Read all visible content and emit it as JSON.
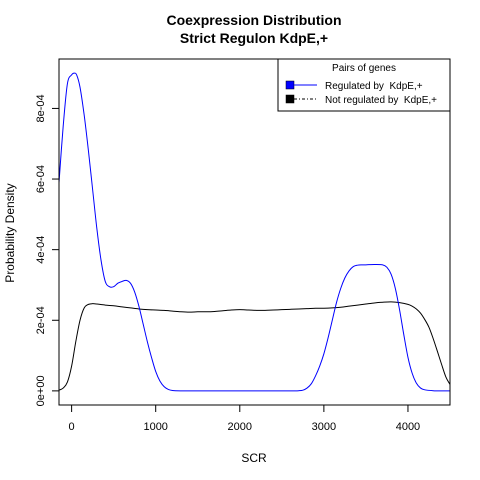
{
  "chart_data": {
    "type": "line",
    "title": "Coexpression Distribution",
    "subtitle": "Strict Regulon KdpE,+",
    "xlabel": "SCR",
    "ylabel": "Probability Density",
    "xlim": [
      -150,
      4500
    ],
    "ylim": [
      -4e-05,
      0.00094
    ],
    "x_ticks": [
      0,
      1000,
      2000,
      3000,
      4000
    ],
    "x_tick_labels": [
      "0",
      "1000",
      "2000",
      "3000",
      "4000"
    ],
    "y_ticks": [
      0,
      0.0002,
      0.0004,
      0.0006,
      0.0008
    ],
    "y_tick_labels": [
      "0e+00",
      "2e-04",
      "4e-04",
      "6e-04",
      "8e-04"
    ],
    "grid": false,
    "legend": {
      "title": "Pairs of genes",
      "placement": "top-right"
    },
    "series": [
      {
        "name": "Regulated by  KdpE,+",
        "color": "#0000ff",
        "line_style": "solid",
        "x": [
          -150,
          -100,
          -50,
          0,
          30,
          60,
          100,
          150,
          200,
          250,
          300,
          350,
          400,
          450,
          500,
          550,
          600,
          650,
          700,
          750,
          800,
          850,
          900,
          950,
          1000,
          1050,
          1100,
          1150,
          1200,
          1300,
          1400,
          1600,
          1800,
          2000,
          2200,
          2400,
          2600,
          2700,
          2750,
          2800,
          2850,
          2900,
          2950,
          3000,
          3050,
          3100,
          3150,
          3200,
          3250,
          3300,
          3350,
          3400,
          3450,
          3500,
          3600,
          3700,
          3750,
          3800,
          3850,
          3900,
          3950,
          4000,
          4050,
          4100,
          4150,
          4200,
          4300,
          4400,
          4500
        ],
        "y": [
          0.00059,
          0.00075,
          0.00087,
          0.000895,
          0.0009,
          0.000895,
          0.00086,
          0.00078,
          0.00068,
          0.00057,
          0.00046,
          0.00037,
          0.00031,
          0.000295,
          0.000295,
          0.000305,
          0.00031,
          0.000313,
          0.000305,
          0.00028,
          0.00024,
          0.00019,
          0.00014,
          9.5e-05,
          5.5e-05,
          2.8e-05,
          1.2e-05,
          4e-06,
          1e-06,
          0,
          0,
          0,
          0,
          0,
          0,
          0,
          0,
          5e-07,
          2e-06,
          8e-06,
          2e-05,
          4.2e-05,
          7e-05,
          0.000105,
          0.00015,
          0.0002,
          0.00025,
          0.00029,
          0.00032,
          0.00034,
          0.000352,
          0.000356,
          0.000357,
          0.000357,
          0.000358,
          0.000357,
          0.00035,
          0.00033,
          0.00029,
          0.00023,
          0.00016,
          9.5e-05,
          5e-05,
          2.2e-05,
          8e-06,
          3e-06,
          5e-07,
          0,
          0
        ]
      },
      {
        "name": "Not regulated by  KdpE,+",
        "color": "#000000",
        "line_style": "solid",
        "x": [
          -150,
          -100,
          -50,
          0,
          50,
          100,
          150,
          200,
          250,
          300,
          400,
          500,
          600,
          700,
          800,
          900,
          1000,
          1100,
          1200,
          1300,
          1400,
          1500,
          1600,
          1700,
          1800,
          1900,
          2000,
          2100,
          2200,
          2300,
          2400,
          2500,
          2600,
          2700,
          2800,
          2900,
          3000,
          3100,
          3200,
          3300,
          3400,
          3500,
          3600,
          3700,
          3800,
          3900,
          4000,
          4050,
          4100,
          4150,
          4200,
          4250,
          4300,
          4350,
          4400,
          4450,
          4500
        ],
        "y": [
          2e-06,
          8e-06,
          2.5e-05,
          7e-05,
          0.00014,
          0.0002,
          0.000235,
          0.000245,
          0.000247,
          0.000246,
          0.000243,
          0.000241,
          0.000238,
          0.000235,
          0.000232,
          0.00023,
          0.000229,
          0.000228,
          0.000226,
          0.000224,
          0.000223,
          0.000224,
          0.000224,
          0.000225,
          0.000227,
          0.000229,
          0.00023,
          0.000229,
          0.000228,
          0.000228,
          0.000229,
          0.00023,
          0.000231,
          0.000232,
          0.000233,
          0.000234,
          0.000234,
          0.000235,
          0.000237,
          0.00024,
          0.000243,
          0.000246,
          0.000249,
          0.000251,
          0.000252,
          0.00025,
          0.000245,
          0.00024,
          0.000232,
          0.00022,
          0.000202,
          0.00018,
          0.000148,
          0.000112,
          7.5e-05,
          4e-05,
          1.8e-05
        ]
      }
    ]
  }
}
